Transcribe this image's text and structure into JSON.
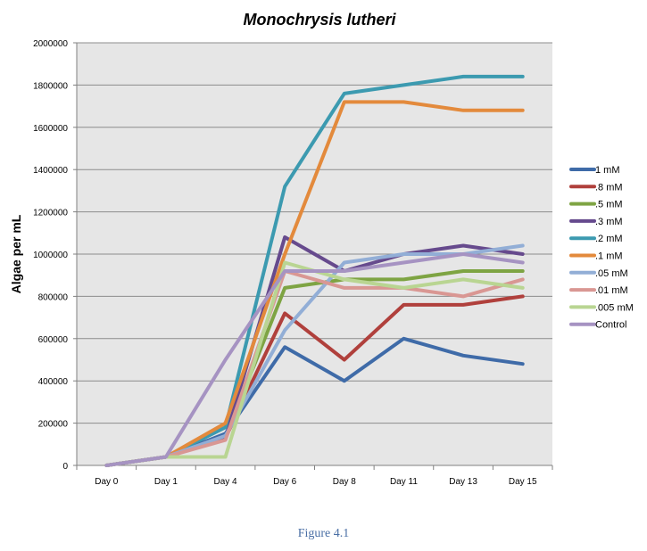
{
  "chart_data": {
    "type": "line",
    "title": "Monochrysis lutheri",
    "ylabel": "Algae per mL",
    "xlabel": "",
    "categories": [
      "Day 0",
      "Day 1",
      "Day 4",
      "Day 6",
      "Day 8",
      "Day 11",
      "Day 13",
      "Day 15"
    ],
    "ylim": [
      0,
      2000000
    ],
    "yticks": [
      0,
      200000,
      400000,
      600000,
      800000,
      1000000,
      1200000,
      1400000,
      1600000,
      1800000,
      2000000
    ],
    "grid": "horizontal",
    "legend_position": "right",
    "plot_background": "#e6e6e6",
    "series": [
      {
        "name": "1 mM",
        "color": "#3f6ba8",
        "values": [
          0,
          40000,
          150000,
          560000,
          400000,
          600000,
          520000,
          480000
        ]
      },
      {
        "name": ".8 mM",
        "color": "#b0403c",
        "values": [
          0,
          40000,
          130000,
          720000,
          500000,
          760000,
          760000,
          800000
        ]
      },
      {
        "name": ".5 mM",
        "color": "#7ea443",
        "values": [
          0,
          40000,
          130000,
          840000,
          880000,
          880000,
          920000,
          920000
        ]
      },
      {
        "name": ".3 mM",
        "color": "#664a8d",
        "values": [
          0,
          40000,
          130000,
          1080000,
          920000,
          1000000,
          1040000,
          1000000
        ]
      },
      {
        "name": ".2 mM",
        "color": "#3c9ab0",
        "values": [
          0,
          40000,
          180000,
          1320000,
          1760000,
          1800000,
          1840000,
          1840000
        ]
      },
      {
        "name": ".1 mM",
        "color": "#e38a3c",
        "values": [
          0,
          40000,
          200000,
          1000000,
          1720000,
          1720000,
          1680000,
          1680000
        ]
      },
      {
        "name": ".05 mM",
        "color": "#92aed6",
        "values": [
          0,
          40000,
          140000,
          640000,
          960000,
          1000000,
          1000000,
          1040000
        ]
      },
      {
        "name": ".01 mM",
        "color": "#d99793",
        "values": [
          0,
          40000,
          120000,
          920000,
          840000,
          840000,
          800000,
          880000
        ]
      },
      {
        "name": ".005 mM",
        "color": "#b9d592",
        "values": [
          0,
          40000,
          40000,
          960000,
          880000,
          840000,
          880000,
          840000
        ]
      },
      {
        "name": "Control",
        "color": "#a693c2",
        "values": [
          0,
          40000,
          500000,
          920000,
          920000,
          960000,
          1000000,
          960000
        ]
      }
    ]
  },
  "caption": "Figure 4.1"
}
